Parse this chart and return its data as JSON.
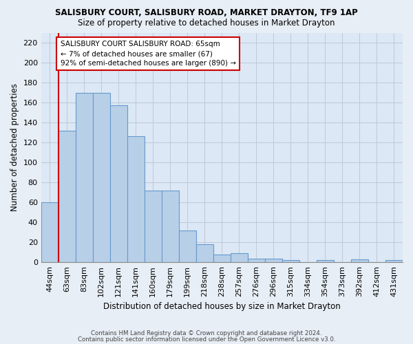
{
  "title1": "SALISBURY COURT, SALISBURY ROAD, MARKET DRAYTON, TF9 1AP",
  "title2": "Size of property relative to detached houses in Market Drayton",
  "xlabel": "Distribution of detached houses by size in Market Drayton",
  "ylabel": "Number of detached properties",
  "categories": [
    "44sqm",
    "63sqm",
    "83sqm",
    "102sqm",
    "121sqm",
    "141sqm",
    "160sqm",
    "179sqm",
    "199sqm",
    "218sqm",
    "238sqm",
    "257sqm",
    "276sqm",
    "296sqm",
    "315sqm",
    "334sqm",
    "354sqm",
    "373sqm",
    "392sqm",
    "412sqm",
    "431sqm"
  ],
  "values": [
    60,
    132,
    170,
    170,
    157,
    126,
    72,
    72,
    32,
    18,
    8,
    9,
    4,
    4,
    2,
    0,
    2,
    0,
    3,
    0,
    2
  ],
  "bar_color": "#b8cfe8",
  "bar_edge_color": "#6699cc",
  "vline_x": 0.5,
  "vline_color": "#cc0000",
  "annotation_text": "SALISBURY COURT SALISBURY ROAD: 65sqm\n← 7% of detached houses are smaller (67)\n92% of semi-detached houses are larger (890) →",
  "annotation_box_color": "#ffffff",
  "annotation_box_edge": "#cc0000",
  "ylim": [
    0,
    230
  ],
  "yticks": [
    0,
    20,
    40,
    60,
    80,
    100,
    120,
    140,
    160,
    180,
    200,
    220
  ],
  "footer1": "Contains HM Land Registry data © Crown copyright and database right 2024.",
  "footer2": "Contains public sector information licensed under the Open Government Licence v3.0.",
  "bg_color": "#e8eef5",
  "plot_bg_color": "#dce8f5"
}
